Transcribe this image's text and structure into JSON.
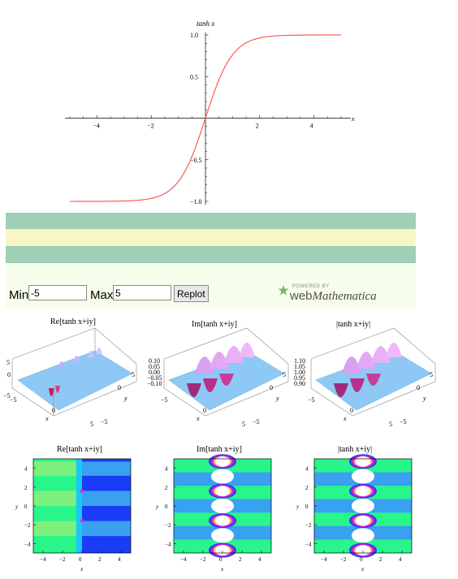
{
  "chart_data": [
    {
      "type": "line",
      "title": "tanh x",
      "xlabel": "x",
      "ylabel": "",
      "xlim": [
        -5,
        5
      ],
      "ylim": [
        -1.0,
        1.0
      ],
      "x_ticks": [
        -4,
        -2,
        2,
        4
      ],
      "y_ticks": [
        -1.0,
        -0.5,
        0.5,
        1.0
      ],
      "x_tick_labels": [
        "−4",
        "−2",
        "2",
        "4"
      ],
      "y_tick_labels": [
        "−1.0",
        "−0.5",
        "0.5",
        "1.0"
      ],
      "series": [
        {
          "function": "tanh",
          "color": "#ff4a4a",
          "x": [
            -5,
            -4,
            -3,
            -2,
            -1.5,
            -1,
            -0.5,
            0,
            0.5,
            1,
            1.5,
            2,
            3,
            4,
            5
          ],
          "y": [
            -0.9999,
            -0.9993,
            -0.9951,
            -0.964,
            -0.905,
            -0.762,
            -0.462,
            0,
            0.462,
            0.762,
            0.905,
            0.964,
            0.9951,
            0.9993,
            0.9999
          ]
        }
      ]
    }
  ],
  "controls": {
    "min_label": "Min",
    "min_value": "-5",
    "max_label": "Max",
    "max_value": "5",
    "replot_label": "Replot"
  },
  "branding": {
    "powered_by": "POWERED BY",
    "web": "web",
    "mathematica": "Mathematica"
  },
  "surface_plots": {
    "titles": [
      "Re[tanh x+iy]",
      "Im[tanh x+iy]",
      "|tanh x+iy|"
    ],
    "z_ticks_re": [
      "5",
      "0",
      "−5"
    ],
    "z_ticks_im": [
      "0.10",
      "0.05",
      "0.00",
      "−0.05",
      "−0.10"
    ],
    "z_ticks_abs": [
      "1.10",
      "1.05",
      "1.00",
      "0.95",
      "0.90"
    ],
    "axis_x": "x",
    "axis_y": "y",
    "tick_5": "5",
    "tick_0": "0",
    "tick_m5": "−5"
  },
  "contour_plots": {
    "titles": [
      "Re[tanh x+iy]",
      "Im[tanh x+iy]",
      "|tanh x+iy|"
    ],
    "x_ticks": [
      "−4",
      "−2",
      "0",
      "2",
      "4"
    ],
    "y_ticks": [
      "4",
      "2",
      "0",
      "−2",
      "−4"
    ],
    "axis_x": "x",
    "axis_y": "y",
    "colors": {
      "green": "#28f58a",
      "light_green": "#7df07d",
      "blue": "#1a3cf5",
      "cyan": "#19c8f5",
      "sky": "#3aa0f0",
      "purple": "#9b28e8",
      "magenta": "#f020d0",
      "yellow": "#f0e85a",
      "red": "#e83a3a",
      "white": "#ffffff"
    }
  }
}
